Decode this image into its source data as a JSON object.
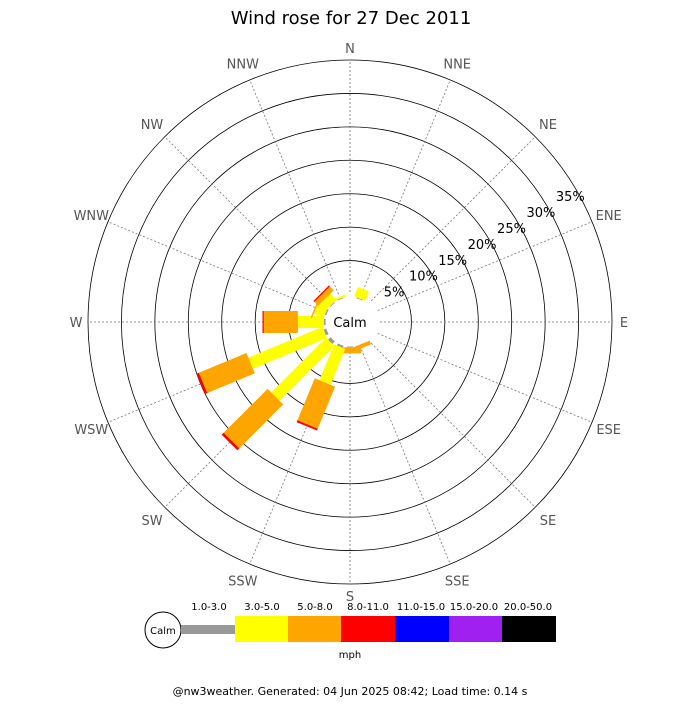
{
  "title": "Wind rose for 27 Dec 2011",
  "calm_label": "Calm",
  "unit_label": "mph",
  "footer": "@nw3weather. Generated: 04 Jun 2025 08:42; Load time: 0.14 s",
  "colors": {
    "grid": "#999999",
    "calm_ring": "#999999",
    "speed_bins": [
      "#999999",
      "#ffff00",
      "#ffa500",
      "#ff0000",
      "#0000ff",
      "#a020f0",
      "#000000"
    ]
  },
  "chart_data": {
    "type": "wind-rose",
    "title": "Wind rose for 27 Dec 2011",
    "directions": [
      "N",
      "NNE",
      "NE",
      "ENE",
      "E",
      "ESE",
      "SE",
      "SSE",
      "S",
      "SSW",
      "SW",
      "WSW",
      "W",
      "WNW",
      "NW",
      "NNW"
    ],
    "radial_ticks": [
      "5%",
      "10%",
      "15%",
      "20%",
      "25%",
      "30%",
      "35%"
    ],
    "radial_tick_values": [
      5,
      10,
      15,
      20,
      25,
      30,
      35
    ],
    "radial_max": 35,
    "speed_bins": [
      "1.0-3.0",
      "3.0-5.0",
      "5.0-8.0",
      "8.0-11.0",
      "11.0-15.0",
      "15.0-20.0",
      "20.0-50.0"
    ],
    "speed_unit": "mph",
    "series": [
      {
        "direction": "NNE",
        "values": [
          0.5,
          1.5,
          0,
          0,
          0,
          0,
          0
        ]
      },
      {
        "direction": "SSE",
        "values": [
          0.4,
          0,
          0.6,
          0,
          0,
          0,
          0
        ]
      },
      {
        "direction": "S",
        "values": [
          0.5,
          0,
          0.9,
          0,
          0,
          0,
          0
        ]
      },
      {
        "direction": "SSW",
        "values": [
          0.7,
          5.8,
          6.8,
          0.3,
          0,
          0,
          0
        ]
      },
      {
        "direction": "SW",
        "values": [
          0.9,
          11.6,
          9.3,
          0.4,
          0,
          0,
          0
        ]
      },
      {
        "direction": "WSW",
        "values": [
          0.8,
          12.0,
          7.7,
          0.4,
          0,
          0,
          0
        ]
      },
      {
        "direction": "W",
        "values": [
          0.6,
          3.9,
          5.1,
          0.2,
          0,
          0,
          0
        ]
      },
      {
        "direction": "WNW",
        "values": [
          0.6,
          1.6,
          0.2,
          0,
          0,
          0,
          0
        ]
      },
      {
        "direction": "NW",
        "values": [
          0.5,
          1.3,
          0.8,
          0.2,
          0,
          0,
          0
        ]
      },
      {
        "direction": "NNW",
        "values": [
          0.5,
          0.3,
          0,
          0,
          0,
          0,
          0
        ]
      }
    ]
  }
}
